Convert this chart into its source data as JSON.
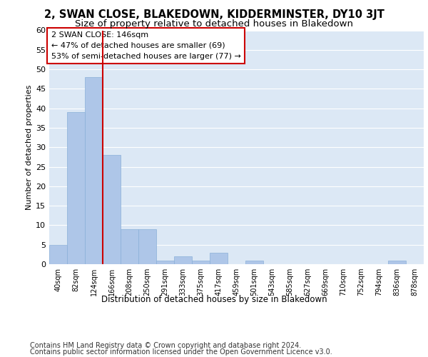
{
  "title1": "2, SWAN CLOSE, BLAKEDOWN, KIDDERMINSTER, DY10 3JT",
  "title2": "Size of property relative to detached houses in Blakedown",
  "xlabel": "Distribution of detached houses by size in Blakedown",
  "ylabel": "Number of detached properties",
  "bins": [
    "40sqm",
    "82sqm",
    "124sqm",
    "166sqm",
    "208sqm",
    "250sqm",
    "291sqm",
    "333sqm",
    "375sqm",
    "417sqm",
    "459sqm",
    "501sqm",
    "543sqm",
    "585sqm",
    "627sqm",
    "669sqm",
    "710sqm",
    "752sqm",
    "794sqm",
    "836sqm",
    "878sqm"
  ],
  "values": [
    5,
    39,
    48,
    28,
    9,
    9,
    1,
    2,
    1,
    3,
    0,
    1,
    0,
    0,
    0,
    0,
    0,
    0,
    0,
    1,
    0
  ],
  "bar_color": "#aec6e8",
  "bar_edge_color": "#8ab0d8",
  "bg_color": "#dce8f5",
  "grid_color": "#ffffff",
  "vline_color": "#cc0000",
  "annotation_text": "2 SWAN CLOSE: 146sqm\n← 47% of detached houses are smaller (69)\n53% of semi-detached houses are larger (77) →",
  "annotation_box_color": "#ffffff",
  "annotation_box_edge": "#cc0000",
  "ylim": [
    0,
    60
  ],
  "yticks": [
    0,
    5,
    10,
    15,
    20,
    25,
    30,
    35,
    40,
    45,
    50,
    55,
    60
  ],
  "footer1": "Contains HM Land Registry data © Crown copyright and database right 2024.",
  "footer2": "Contains public sector information licensed under the Open Government Licence v3.0.",
  "title1_fontsize": 10.5,
  "title2_fontsize": 9.5,
  "annotation_fontsize": 8,
  "footer_fontsize": 7,
  "ylabel_fontsize": 8,
  "xlabel_fontsize": 8.5,
  "ytick_fontsize": 8,
  "xtick_fontsize": 7
}
